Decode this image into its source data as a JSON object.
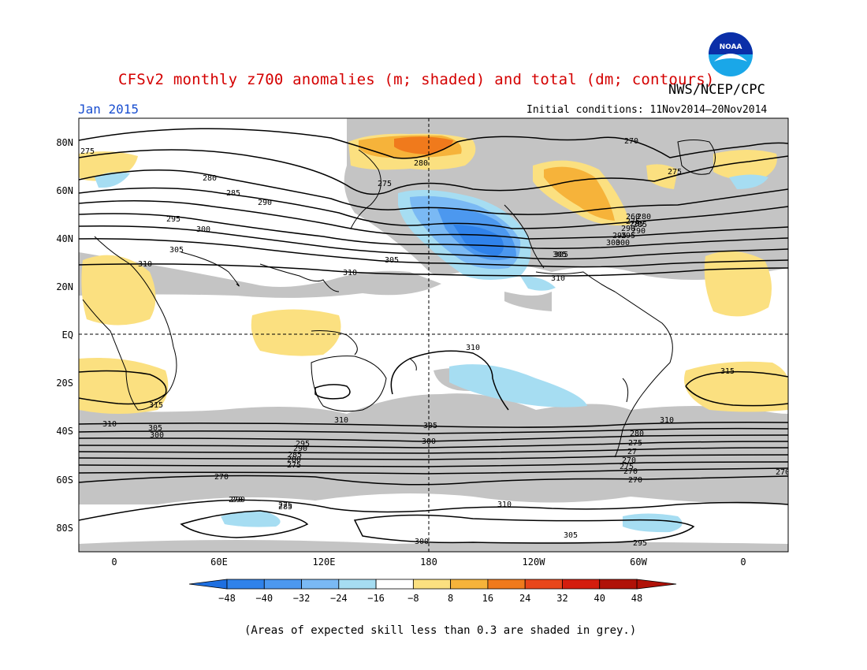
{
  "title": "CFSv2 monthly z700 anomalies (m; shaded) and total (dm; contours)",
  "agency": "NWS/NCEP/CPC",
  "month_label": "Jan 2015",
  "initial_conditions": "Initial conditions: 11Nov2014—20Nov2014",
  "footnote": "(Areas of expected skill less than 0.3 are shaded in grey.)",
  "logo": {
    "icon": "noaa-logo",
    "text": "NOAA"
  },
  "axes": {
    "lat_labels": [
      "80N",
      "60N",
      "40N",
      "20N",
      "EQ",
      "20S",
      "40S",
      "60S",
      "80S"
    ],
    "lon_labels": [
      "0",
      "60E",
      "120E",
      "180",
      "120W",
      "60W",
      "0"
    ]
  },
  "colorbar": {
    "ticks": [
      "-48",
      "-40",
      "-32",
      "-24",
      "-16",
      "-8",
      "8",
      "16",
      "24",
      "32",
      "40",
      "48"
    ],
    "colors": [
      "#1e6fe0",
      "#2f82ea",
      "#4c98ef",
      "#7ab9f4",
      "#a6ddf2",
      "#ffffff",
      "#fbe080",
      "#f6b33a",
      "#f07a1c",
      "#e8461a",
      "#d41d0e",
      "#b01208",
      "#ffffff"
    ]
  },
  "colors": {
    "grey_low_skill": "#c4c4c4",
    "title_red": "#d40000",
    "label_blue": "#1a4fd0"
  },
  "contour_labels": [
    {
      "text": "275"
    },
    {
      "text": "270"
    },
    {
      "text": "280"
    },
    {
      "text": "275"
    },
    {
      "text": "280"
    },
    {
      "text": "285"
    },
    {
      "text": "290"
    },
    {
      "text": "295"
    },
    {
      "text": "300"
    },
    {
      "text": "305"
    },
    {
      "text": "310"
    },
    {
      "text": "275"
    },
    {
      "text": "280"
    },
    {
      "text": "285"
    },
    {
      "text": "290"
    },
    {
      "text": "295"
    },
    {
      "text": "300"
    },
    {
      "text": "305"
    },
    {
      "text": "310"
    },
    {
      "text": "310"
    },
    {
      "text": "305"
    },
    {
      "text": "275"
    },
    {
      "text": "260"
    },
    {
      "text": "285"
    },
    {
      "text": "290"
    },
    {
      "text": "295"
    },
    {
      "text": "300"
    },
    {
      "text": "305"
    },
    {
      "text": "310"
    },
    {
      "text": "310"
    },
    {
      "text": "315"
    },
    {
      "text": "315"
    },
    {
      "text": "310"
    },
    {
      "text": "310"
    },
    {
      "text": "305"
    },
    {
      "text": "300"
    },
    {
      "text": "305"
    },
    {
      "text": "300"
    },
    {
      "text": "295"
    },
    {
      "text": "290"
    },
    {
      "text": "285"
    },
    {
      "text": "280"
    },
    {
      "text": "275"
    },
    {
      "text": "270"
    },
    {
      "text": "310"
    },
    {
      "text": "305"
    },
    {
      "text": "300"
    },
    {
      "text": "295"
    },
    {
      "text": "290"
    },
    {
      "text": "285"
    },
    {
      "text": "280"
    },
    {
      "text": "275"
    },
    {
      "text": "27"
    },
    {
      "text": "270"
    },
    {
      "text": "275"
    },
    {
      "text": "270"
    },
    {
      "text": "270"
    },
    {
      "text": "270"
    },
    {
      "text": "270"
    },
    {
      "text": "275"
    }
  ]
}
